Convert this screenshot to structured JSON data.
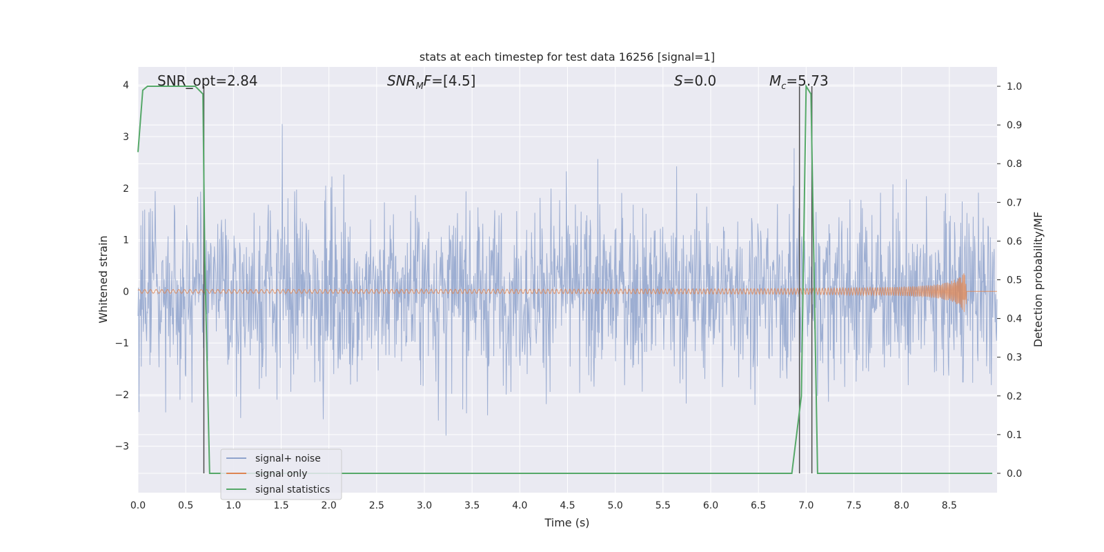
{
  "chart_data": {
    "type": "line",
    "title": "stats at each timestep for test data 16256 [signal=1]",
    "xlabel": "Time (s)",
    "ylabel_left": "Whitened strain",
    "ylabel_right": "Detection probability/MF",
    "xlim": [
      0.0,
      9.0
    ],
    "ylim_left": [
      -3.9,
      4.35
    ],
    "ylim_right": [
      -0.05,
      1.05
    ],
    "x_ticks": [
      "0.0",
      "0.5",
      "1.0",
      "1.5",
      "2.0",
      "2.5",
      "3.0",
      "3.5",
      "4.0",
      "4.5",
      "5.0",
      "5.5",
      "6.0",
      "6.5",
      "7.0",
      "7.5",
      "8.0",
      "8.5"
    ],
    "y_ticks_left": [
      "4",
      "3",
      "2",
      "1",
      "0",
      "−1",
      "−2",
      "−3"
    ],
    "y_ticks_right": [
      "1.0",
      "0.9",
      "0.8",
      "0.7",
      "0.6",
      "0.5",
      "0.4",
      "0.3",
      "0.2",
      "0.1",
      "0.0"
    ],
    "grid": true,
    "legend_position": "lower-left",
    "annotations": {
      "snr_opt": "SNR_opt=2.84",
      "snr_mf_main": "SNR",
      "snr_mf_sub": "M",
      "snr_mf_tail": "F=[4.5]",
      "s_main": "S",
      "s_tail": "=0.0",
      "mc_main": "M",
      "mc_sub": "c",
      "mc_tail": "=5.73"
    },
    "series": [
      {
        "name": "signal+ noise",
        "color": "#8fa3cc",
        "axis": "left",
        "approx_range": [
          -3.6,
          3.7
        ]
      },
      {
        "name": "signal only",
        "color": "#dd8452",
        "axis": "left",
        "approx_range": [
          -0.3,
          0.4
        ],
        "chirp_end": 8.68
      },
      {
        "name": "signal statistics",
        "color": "#55a868",
        "axis": "right",
        "points": [
          [
            0.0,
            0.83
          ],
          [
            0.05,
            0.99
          ],
          [
            0.1,
            1.0
          ],
          [
            0.6,
            1.0
          ],
          [
            0.68,
            0.98
          ],
          [
            0.7,
            0.55
          ],
          [
            0.75,
            0.0
          ],
          [
            6.85,
            0.0
          ],
          [
            6.95,
            0.2
          ],
          [
            7.0,
            1.0
          ],
          [
            7.05,
            0.98
          ],
          [
            7.12,
            0.0
          ],
          [
            8.95,
            0.0
          ]
        ]
      }
    ],
    "vertical_lines": [
      0.69,
      6.93,
      7.06
    ]
  }
}
